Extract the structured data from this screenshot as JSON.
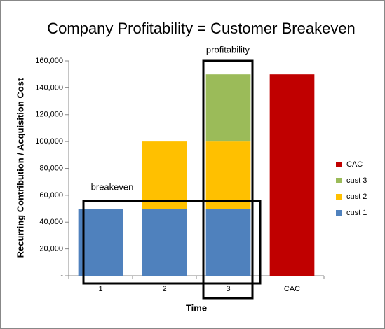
{
  "chart_data": {
    "type": "stacked_bar",
    "title": "Company Profitability = Customer Breakeven",
    "x_label": "Time",
    "y_label": "Recurring Contribution / Acquisition Cost",
    "categories": [
      "1",
      "2",
      "3",
      "CAC"
    ],
    "series": [
      {
        "name": "cust 1",
        "color": "#4f81bd",
        "values": [
          50000,
          50000,
          50000,
          null
        ]
      },
      {
        "name": "cust 2",
        "color": "#ffc000",
        "values": [
          null,
          50000,
          50000,
          null
        ]
      },
      {
        "name": "cust 3",
        "color": "#9bbb59",
        "values": [
          null,
          null,
          50000,
          null
        ]
      },
      {
        "name": "CAC",
        "color": "#c00000",
        "values": [
          null,
          null,
          null,
          150000
        ]
      }
    ],
    "ylim": [
      0,
      160000
    ],
    "yticks": [
      {
        "value": 0,
        "label": "-"
      },
      {
        "value": 20000,
        "label": "20,000"
      },
      {
        "value": 40000,
        "label": "40,000"
      },
      {
        "value": 60000,
        "label": "60,000"
      },
      {
        "value": 80000,
        "label": "80,000"
      },
      {
        "value": 100000,
        "label": "100,000"
      },
      {
        "value": 120000,
        "label": "120,000"
      },
      {
        "value": 140000,
        "label": "140,000"
      },
      {
        "value": 160000,
        "label": "160,000"
      }
    ],
    "annotations": [
      "breakeven",
      "profitability"
    ],
    "legend": "right",
    "grid": false
  }
}
